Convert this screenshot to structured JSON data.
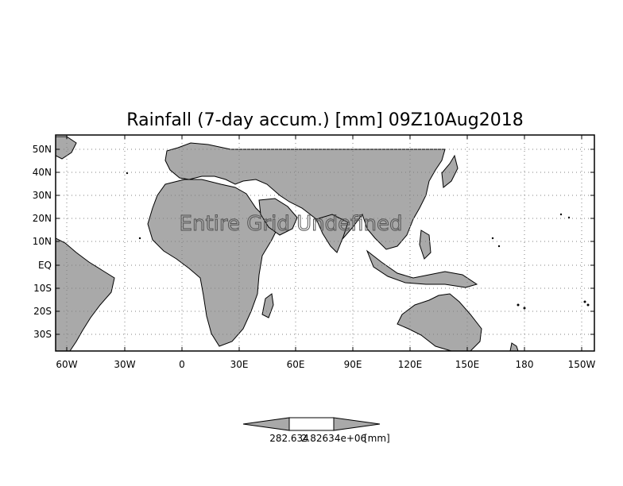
{
  "title": "Rainfall (7-day accum.) [mm] 09Z10Aug2018",
  "map": {
    "overlay_text": "Entire Grid Undefined",
    "x_ticks": [
      "60W",
      "30W",
      "0",
      "30E",
      "60E",
      "90E",
      "120E",
      "150E",
      "180",
      "150W"
    ],
    "y_ticks": [
      "50N",
      "40N",
      "30N",
      "20N",
      "10N",
      "EQ",
      "10S",
      "20S",
      "30S"
    ],
    "land_color": "#a9a9a9",
    "coast_color": "#000000",
    "gridlines": true
  },
  "colorbar": {
    "label_left": "282.634",
    "label_mid": "2.82634e+06",
    "units": "[mm]",
    "arrow_color": "#a9a9a9",
    "mid_color": "#ffffff"
  }
}
